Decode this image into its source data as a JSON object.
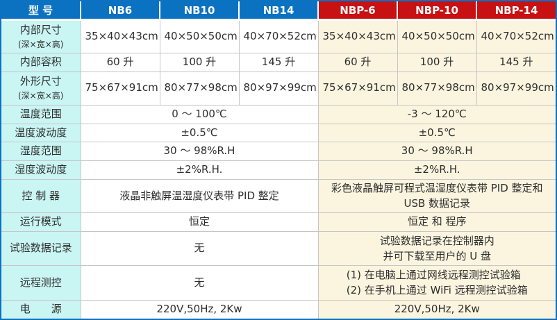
{
  "chart_data": {
    "type": "table",
    "columns": [
      "型 号",
      "NB6",
      "NB10",
      "NB14",
      "NBP-6",
      "NBP-10",
      "NBP-14"
    ],
    "rows": {
      "inner_size": {
        "label": "内部尺寸",
        "sublabel": "(深×宽×高)",
        "values": [
          "35×40×43cm",
          "40×50×50cm",
          "40×70×52cm",
          "35×40×43cm",
          "40×50×50cm",
          "40×70×52cm"
        ]
      },
      "inner_volume": {
        "label": "内部容积",
        "values": [
          "60 升",
          "100 升",
          "145 升",
          "60 升",
          "100 升",
          "145 升"
        ]
      },
      "outer_size": {
        "label": "外形尺寸",
        "sublabel": "(深×宽×高)",
        "values": [
          "75×67×91cm",
          "80×77×98cm",
          "80×97×99cm",
          "75×67×91cm",
          "80×77×98cm",
          "80×97×99cm"
        ]
      },
      "temp_range": {
        "label": "温度范围",
        "nb": "0 ～ 100℃",
        "nbp": "-3 ～ 120℃"
      },
      "temp_fluct": {
        "label": "温度波动度",
        "nb": "±0.5℃",
        "nbp": "±0.5℃"
      },
      "humid_range": {
        "label": "湿度范围",
        "nb": "30 ～ 98%R.H",
        "nbp": "30 ～ 98%R.H"
      },
      "humid_fluct": {
        "label": "湿度波动度",
        "nb": "±2%R.H.",
        "nbp": "±2%R.H."
      },
      "controller": {
        "label": "控 制 器",
        "nb": "液晶非触屏温湿度仪表带 PID 整定",
        "nbp": "彩色液晶触屏可程式温湿度仪表带 PID 整定和 USB 数据记录"
      },
      "run_mode": {
        "label": "运行模式",
        "nb": "恒定",
        "nbp": "恒定 和 程序"
      },
      "data_record": {
        "label": "试验数据记录",
        "nb": "无",
        "nbp_lines": [
          "试验数据记录在控制器内",
          "并可下载至用户的 U 盘"
        ]
      },
      "remote": {
        "label": "远程测控",
        "nb": "无",
        "nbp_lines": [
          "(1) 在电脑上通过网线远程测控试验箱",
          "(2) 在手机上通过 WiFi 远程测控试验箱"
        ]
      },
      "power": {
        "label": "电　　源",
        "nb": "220V,50Hz, 2Kw",
        "nbp": "220V,50Hz, 2Kw"
      }
    }
  },
  "colors": {
    "nb_header": "#0b71c1",
    "nbp_header": "#c81113",
    "label_bg": "#c9f5f3",
    "nb_bg": "#ffffff",
    "nbp_bg": "#fbf4df",
    "border": "#c6c6c6",
    "frame": "#0b71c1",
    "text": "#2e2e2e"
  }
}
